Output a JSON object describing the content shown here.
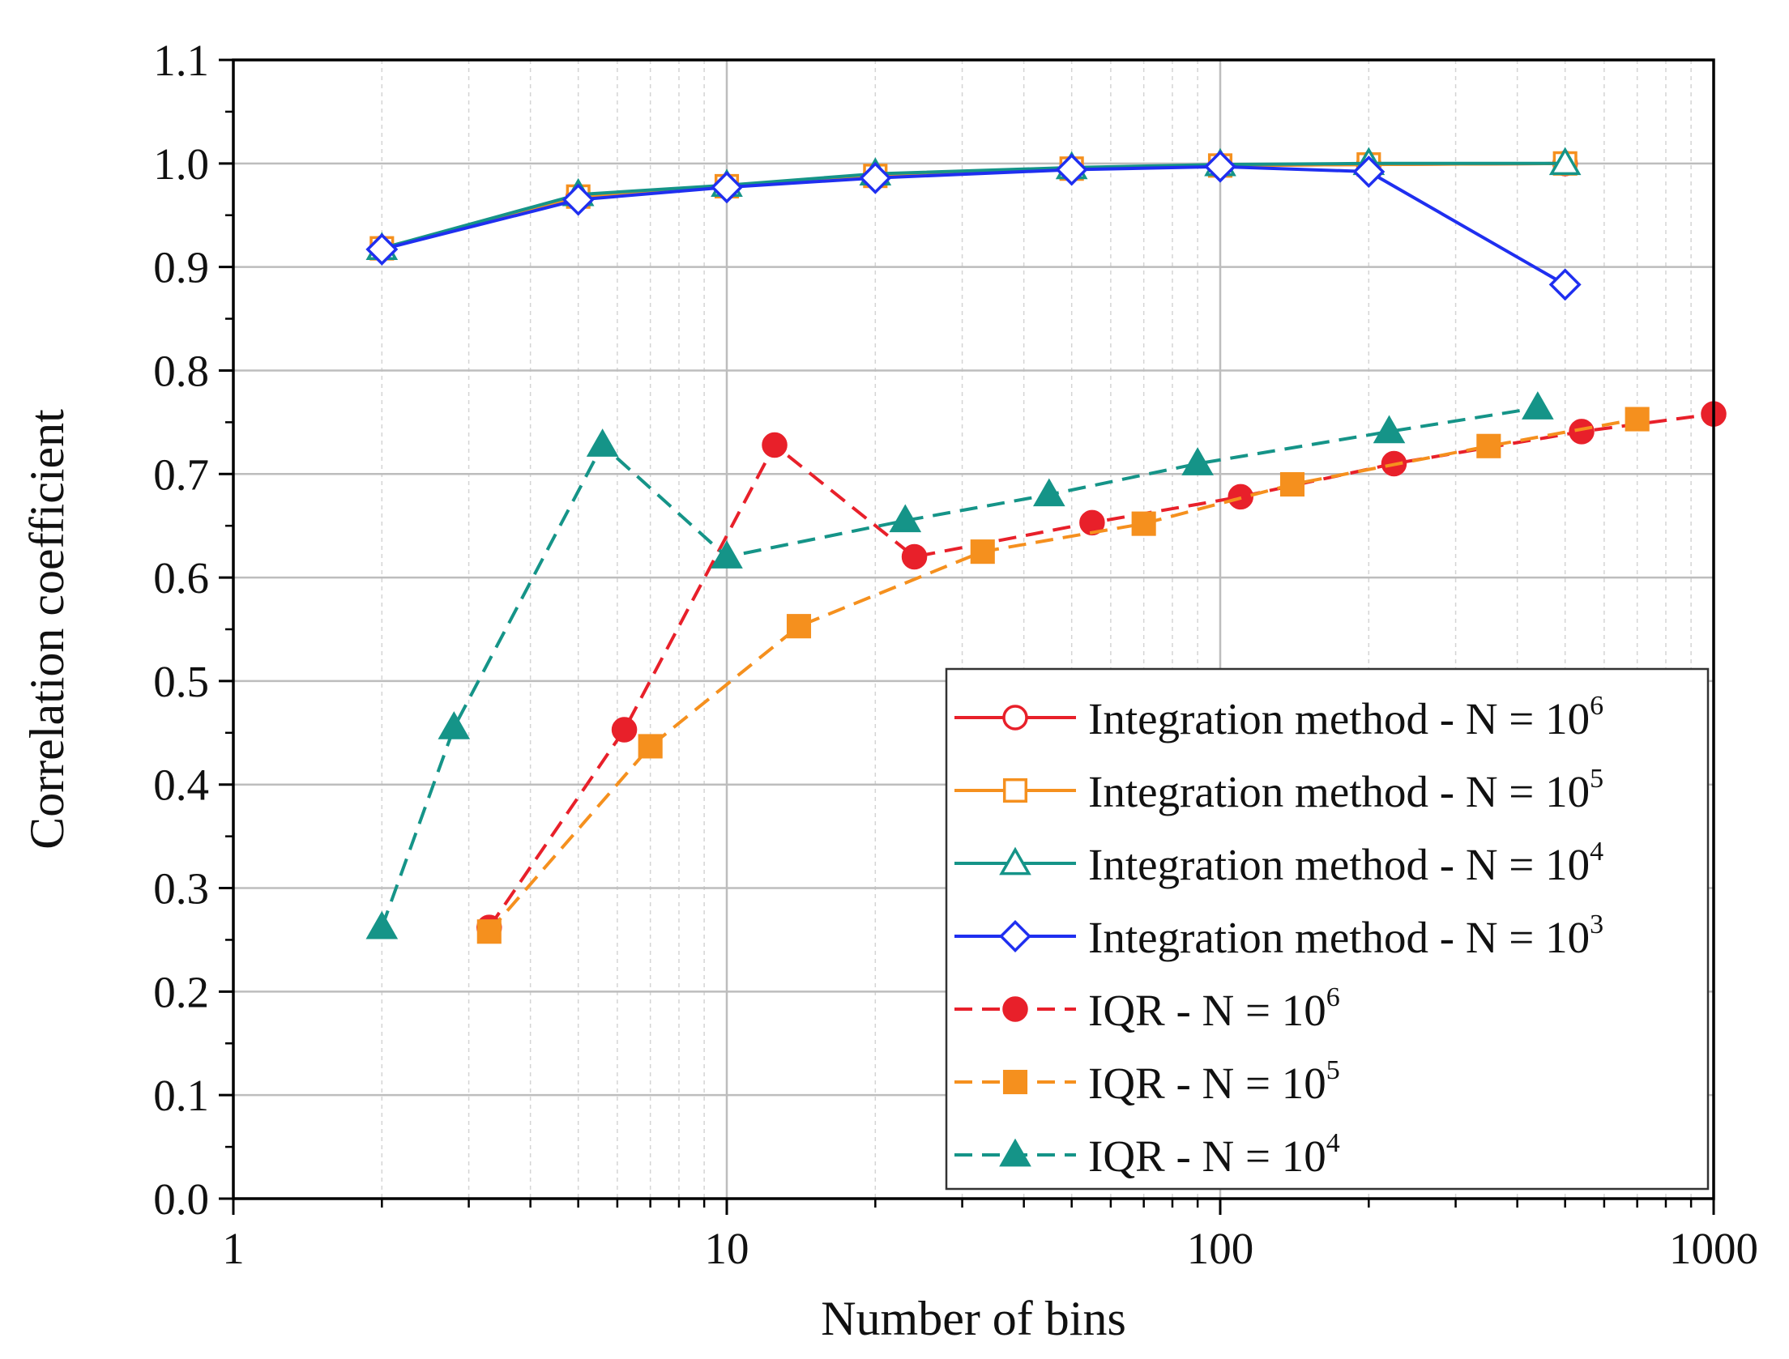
{
  "chart_data": {
    "type": "line",
    "title": "",
    "xlabel": "Number of bins",
    "ylabel": "Correlation coefficient",
    "xscale": "log",
    "xlim": [
      1,
      1000
    ],
    "ylim": [
      0.0,
      1.1
    ],
    "grid": true,
    "x_ticks": [
      1,
      10,
      100,
      1000
    ],
    "x_tick_labels": [
      "1",
      "10",
      "100",
      "1000"
    ],
    "y_ticks": [
      0.0,
      0.1,
      0.2,
      0.3,
      0.4,
      0.5,
      0.6,
      0.7,
      0.8,
      0.9,
      1.0,
      1.1
    ],
    "y_tick_labels": [
      "0.0",
      "0.1",
      "0.2",
      "0.3",
      "0.4",
      "0.5",
      "0.6",
      "0.7",
      "0.8",
      "0.9",
      "1.0",
      "1.1"
    ],
    "legend_position": "bottom-right",
    "series": [
      {
        "name": "Integration method - N = 10^6",
        "label_text": "Integration method - N = 10",
        "label_sup": "6",
        "color": "#e8202a",
        "line": "solid",
        "marker": "circle",
        "filled": false,
        "x": [
          2,
          5,
          10,
          20,
          50,
          100,
          200,
          500
        ],
        "y": [
          0.918,
          0.968,
          0.978,
          0.988,
          0.995,
          0.998,
          0.999,
          1.0
        ]
      },
      {
        "name": "Integration method - N = 10^5",
        "label_text": "Integration method - N = 10",
        "label_sup": "5",
        "color": "#f5901e",
        "line": "solid",
        "marker": "square",
        "filled": false,
        "x": [
          2,
          5,
          10,
          20,
          50,
          100,
          200,
          500
        ],
        "y": [
          0.918,
          0.968,
          0.978,
          0.988,
          0.995,
          0.998,
          0.999,
          1.0
        ]
      },
      {
        "name": "Integration method - N = 10^4",
        "label_text": "Integration method - N = 10",
        "label_sup": "4",
        "color": "#159488",
        "line": "solid",
        "marker": "triangle",
        "filled": false,
        "x": [
          2,
          5,
          10,
          20,
          50,
          100,
          200,
          500
        ],
        "y": [
          0.918,
          0.97,
          0.979,
          0.99,
          0.996,
          0.999,
          1.0,
          1.0
        ]
      },
      {
        "name": "Integration method - N = 10^3",
        "label_text": "Integration method - N = 10",
        "label_sup": "3",
        "color": "#1f2ff0",
        "line": "solid",
        "marker": "diamond",
        "filled": false,
        "x": [
          2,
          5,
          10,
          20,
          50,
          100,
          200,
          500
        ],
        "y": [
          0.917,
          0.965,
          0.977,
          0.986,
          0.994,
          0.997,
          0.992,
          0.883
        ]
      },
      {
        "name": "IQR - N = 10^6",
        "label_text": "IQR - N = 10",
        "label_sup": "6",
        "color": "#e8202a",
        "line": "dashed",
        "marker": "circle",
        "filled": true,
        "x": [
          3.3,
          6.2,
          12.5,
          24,
          55,
          110,
          225,
          540,
          1000
        ],
        "y": [
          0.262,
          0.453,
          0.728,
          0.62,
          0.653,
          0.678,
          0.71,
          0.741,
          0.758
        ]
      },
      {
        "name": "IQR - N = 10^5",
        "label_text": "IQR - N = 10",
        "label_sup": "5",
        "color": "#f5901e",
        "line": "dashed",
        "marker": "square",
        "filled": true,
        "x": [
          3.3,
          7.0,
          14,
          33,
          70,
          140,
          350,
          700
        ],
        "y": [
          0.258,
          0.437,
          0.553,
          0.625,
          0.652,
          0.69,
          0.727,
          0.753
        ]
      },
      {
        "name": "IQR - N = 10^4",
        "label_text": "IQR - N = 10",
        "label_sup": "4",
        "color": "#159488",
        "line": "dashed",
        "marker": "triangle",
        "filled": true,
        "x": [
          2,
          2.8,
          5.6,
          10,
          23,
          45,
          90,
          220,
          440
        ],
        "y": [
          0.262,
          0.455,
          0.728,
          0.62,
          0.655,
          0.68,
          0.71,
          0.741,
          0.764
        ]
      }
    ]
  }
}
